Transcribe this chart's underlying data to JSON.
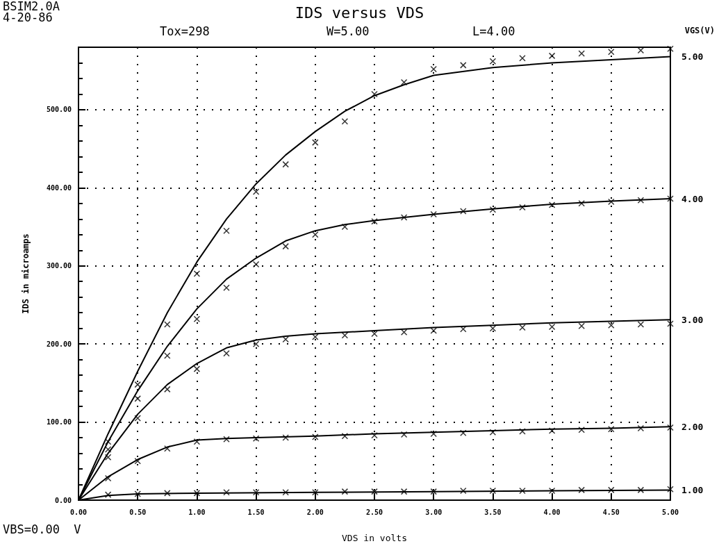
{
  "chart_data": {
    "type": "line",
    "title": "IDS versus VDS",
    "xlabel": "VDS in volts",
    "ylabel": "IDS in microamps",
    "annotations": [
      "BSIM2.0A",
      "4-20-86",
      "Tox=298",
      "W=5.00",
      "L=4.00",
      "VGS(V)",
      "VBS=0.00  V"
    ],
    "xlim": [
      0,
      5
    ],
    "ylim": [
      0,
      580
    ],
    "xticks": [
      {
        "value": 0,
        "label": "0.00"
      },
      {
        "value": 0.5,
        "label": "0.50"
      },
      {
        "value": 1,
        "label": "1.00"
      },
      {
        "value": 1.5,
        "label": "1.50"
      },
      {
        "value": 2,
        "label": "2.00"
      },
      {
        "value": 2.5,
        "label": "2.50"
      },
      {
        "value": 3,
        "label": "3.00"
      },
      {
        "value": 3.5,
        "label": "3.50"
      },
      {
        "value": 4,
        "label": "4.00"
      },
      {
        "value": 4.5,
        "label": "4.50"
      },
      {
        "value": 5,
        "label": "5.00"
      }
    ],
    "yticks": [
      {
        "value": 0,
        "label": "0.00"
      },
      {
        "value": 100,
        "label": "100.00"
      },
      {
        "value": 200,
        "label": "200.00"
      },
      {
        "value": 300,
        "label": "300.00"
      },
      {
        "value": 400,
        "label": "400.00"
      },
      {
        "value": 500,
        "label": "500.00"
      }
    ],
    "grid": true,
    "legend": false,
    "series": [
      {
        "name": "5.00",
        "marker": "none",
        "color": "#000000",
        "x": [
          0,
          0.25,
          0.5,
          0.75,
          1,
          1.25,
          1.5,
          1.75,
          2,
          2.25,
          2.5,
          2.75,
          3,
          3.5,
          4,
          4.5,
          5
        ],
        "values": [
          0,
          85,
          165,
          240,
          305,
          360,
          405,
          442,
          472,
          498,
          518,
          532,
          544,
          554,
          560,
          564,
          568
        ]
      },
      {
        "name": "4.00",
        "marker": "none",
        "color": "#000000",
        "x": [
          0,
          0.25,
          0.5,
          0.75,
          1,
          1.25,
          1.5,
          1.75,
          2,
          2.25,
          2.5,
          3,
          3.5,
          4,
          4.5,
          5
        ],
        "values": [
          0,
          75,
          140,
          197,
          245,
          283,
          310,
          332,
          345,
          353,
          358,
          366,
          373,
          379,
          383,
          386
        ]
      },
      {
        "name": "3.00",
        "marker": "none",
        "color": "#000000",
        "x": [
          0,
          0.25,
          0.5,
          0.75,
          1,
          1.25,
          1.5,
          1.75,
          2,
          2.5,
          3,
          3.5,
          4,
          4.5,
          5
        ],
        "values": [
          0,
          60,
          110,
          148,
          175,
          195,
          205,
          210,
          213,
          217,
          221,
          224,
          227,
          229,
          231
        ]
      },
      {
        "name": "2.00",
        "marker": "none",
        "color": "#000000",
        "x": [
          0,
          0.25,
          0.5,
          0.75,
          1,
          1.25,
          1.5,
          2,
          2.5,
          3,
          3.5,
          4,
          4.5,
          5
        ],
        "values": [
          0,
          30,
          52,
          68,
          77,
          79,
          80,
          82,
          85,
          87,
          89,
          91,
          92,
          94
        ]
      },
      {
        "name": "1.00",
        "marker": "none",
        "color": "#000000",
        "x": [
          0,
          0.25,
          0.5,
          1,
          2,
          3,
          4,
          5
        ],
        "values": [
          0,
          6,
          8,
          9,
          10,
          11,
          12,
          13
        ]
      },
      {
        "type": "scatter",
        "marker": "cross",
        "color": "#000000",
        "x": [
          0.25,
          0.5,
          0.75,
          1,
          1.25,
          1.5,
          1.75,
          2,
          2.25,
          2.5,
          2.75,
          3,
          3.25,
          3.5,
          3.75,
          4,
          4.25,
          4.5,
          4.75,
          5
        ],
        "values": [
          75,
          148,
          225,
          290,
          345,
          395,
          430,
          458,
          485,
          520,
          535,
          552,
          557,
          562,
          566,
          569,
          572,
          574,
          576,
          578
        ]
      },
      {
        "type": "scatter",
        "marker": "cross",
        "color": "#000000",
        "x": [
          0.25,
          0.5,
          0.75,
          1,
          1.25,
          1.5,
          1.75,
          2,
          2.25,
          2.5,
          2.75,
          3,
          3.25,
          3.5,
          3.75,
          4,
          4.25,
          4.5,
          4.75,
          5
        ],
        "values": [
          65,
          130,
          185,
          232,
          272,
          302,
          325,
          340,
          350,
          357,
          362,
          366,
          370,
          372,
          375,
          378,
          380,
          382,
          384,
          386
        ]
      },
      {
        "type": "scatter",
        "marker": "cross",
        "color": "#000000",
        "x": [
          0.25,
          0.5,
          0.75,
          1,
          1.25,
          1.5,
          1.75,
          2,
          2.25,
          2.5,
          2.75,
          3,
          3.25,
          3.5,
          3.75,
          4,
          4.25,
          4.5,
          4.75,
          5
        ],
        "values": [
          55,
          105,
          142,
          168,
          188,
          200,
          206,
          209,
          211,
          213,
          215,
          217,
          219,
          220,
          221,
          222,
          223,
          224,
          225,
          226
        ]
      },
      {
        "type": "scatter",
        "marker": "cross",
        "color": "#000000",
        "x": [
          0.25,
          0.5,
          0.75,
          1,
          1.25,
          1.5,
          1.75,
          2,
          2.25,
          2.5,
          2.75,
          3,
          3.25,
          3.5,
          3.75,
          4,
          4.25,
          4.5,
          4.75,
          5
        ],
        "values": [
          28,
          50,
          66,
          75,
          78,
          79,
          80,
          81,
          82,
          83,
          84,
          85,
          86,
          87,
          88,
          89,
          90,
          91,
          92,
          93
        ]
      },
      {
        "type": "scatter",
        "marker": "cross",
        "color": "#000000",
        "x": [
          0.25,
          0.5,
          0.75,
          1,
          1.25,
          1.5,
          1.75,
          2,
          2.25,
          2.5,
          2.75,
          3,
          3.25,
          3.5,
          3.75,
          4,
          4.25,
          4.5,
          4.75,
          5
        ],
        "values": [
          7,
          8,
          9,
          9,
          10,
          10,
          10,
          10,
          11,
          11,
          11,
          11,
          12,
          12,
          12,
          12,
          13,
          13,
          13,
          14
        ]
      }
    ]
  }
}
